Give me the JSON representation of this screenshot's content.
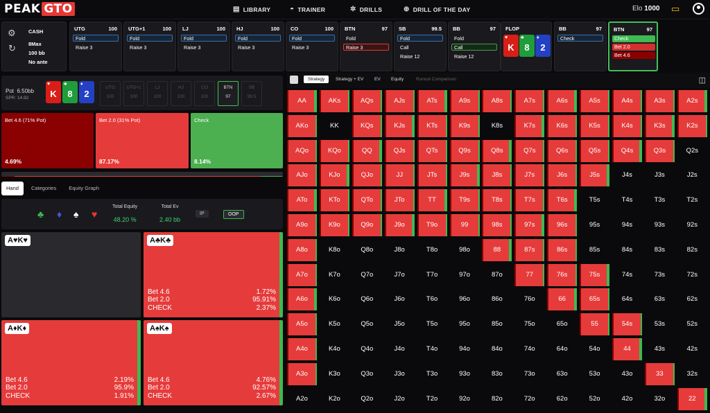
{
  "app": {
    "logo_a": "PEAK",
    "logo_b": "GTO",
    "nav": [
      {
        "icon": "▤",
        "label": "LIBRARY"
      },
      {
        "icon": "◓",
        "label": "TRAINER"
      },
      {
        "icon": "✲",
        "label": "DRILLS"
      },
      {
        "icon": "⊕",
        "label": "DRILL OF THE DAY"
      }
    ],
    "elo_label": "Elo",
    "elo_value": "1000"
  },
  "game": {
    "type": "CASH",
    "format": "8Max",
    "stack": "100 bb",
    "ante": "No ante"
  },
  "positions": [
    {
      "name": "UTG",
      "stack": "100",
      "actions": [
        {
          "label": "Fold",
          "style": "fold"
        },
        {
          "label": "Raise 3",
          "style": "plain"
        }
      ]
    },
    {
      "name": "UTG+1",
      "stack": "100",
      "actions": [
        {
          "label": "Fold",
          "style": "fold"
        },
        {
          "label": "Raise 3",
          "style": "plain"
        }
      ]
    },
    {
      "name": "LJ",
      "stack": "100",
      "actions": [
        {
          "label": "Fold",
          "style": "fold"
        },
        {
          "label": "Raise 3",
          "style": "plain"
        }
      ]
    },
    {
      "name": "HJ",
      "stack": "100",
      "actions": [
        {
          "label": "Fold",
          "style": "fold"
        },
        {
          "label": "Raise 3",
          "style": "plain"
        }
      ]
    },
    {
      "name": "CO",
      "stack": "100",
      "actions": [
        {
          "label": "Fold",
          "style": "fold"
        },
        {
          "label": "Raise 3",
          "style": "plain"
        }
      ]
    },
    {
      "name": "BTN",
      "stack": "97",
      "actions": [
        {
          "label": "Fold",
          "style": "plain"
        },
        {
          "label": "Raise 3",
          "style": "raiseSel"
        }
      ]
    },
    {
      "name": "SB",
      "stack": "99.5",
      "actions": [
        {
          "label": "Fold",
          "style": "fold"
        },
        {
          "label": "Call",
          "style": "plain"
        },
        {
          "label": "Raise 12",
          "style": "plain"
        }
      ]
    },
    {
      "name": "BB",
      "stack": "97",
      "actions": [
        {
          "label": "Fold",
          "style": "plain"
        },
        {
          "label": "Call",
          "style": "callSel"
        },
        {
          "label": "Raise 12",
          "style": "plain"
        }
      ]
    }
  ],
  "flop": {
    "label": "FLOP",
    "cards": [
      {
        "rank": "K",
        "suit": "♥",
        "color": "#d91e18"
      },
      {
        "rank": "8",
        "suit": "♣",
        "color": "#1f9d3a"
      },
      {
        "rank": "2",
        "suit": "♦",
        "color": "#2440c4"
      }
    ]
  },
  "bb_node": {
    "name": "BB",
    "stack": "97",
    "action": "Check"
  },
  "hero_node": {
    "name": "BTN",
    "stack": "97",
    "actions": [
      {
        "label": "Check",
        "style": "g"
      },
      {
        "label": "Bet 2.0",
        "style": "r"
      },
      {
        "label": "Bet 4.6",
        "style": "dr"
      }
    ]
  },
  "pot": {
    "label": "Pot",
    "value": "6.50bb",
    "spr": "SPR: 14.92"
  },
  "mini_positions": [
    {
      "n": "UTG",
      "s": "100"
    },
    {
      "n": "UTG+1",
      "s": "100"
    },
    {
      "n": "LJ",
      "s": "100"
    },
    {
      "n": "HJ",
      "s": "100"
    },
    {
      "n": "CO",
      "s": "100"
    },
    {
      "n": "BTN",
      "s": "97",
      "sel": true
    },
    {
      "n": "SB",
      "s": "99.5"
    }
  ],
  "strategy": [
    {
      "label": "Bet 4.6 (71% Pot)",
      "pct": "4.69%",
      "freq": 4.69,
      "color": "#8b0000"
    },
    {
      "label": "Bet 2.0 (31% Pot)",
      "pct": "87.17%",
      "freq": 87.17,
      "color": "#e63b3b"
    },
    {
      "label": "Check",
      "pct": "8.14%",
      "freq": 8.14,
      "color": "#4caf50"
    }
  ],
  "tabs": [
    "Hand",
    "Categories",
    "Equity Graph"
  ],
  "equity": {
    "total_equity_label": "Total Equity",
    "total_equity": "48.20 %",
    "total_ev_label": "Total Ev",
    "total_ev": "2.40 bb",
    "ip": "IP",
    "oop": "OOP"
  },
  "suits": [
    {
      "s": "♣",
      "c": "#3fb950"
    },
    {
      "s": "♦",
      "c": "#3b5bdb"
    },
    {
      "s": "♠",
      "c": "#ffffff"
    },
    {
      "s": "♥",
      "c": "#e53935"
    }
  ],
  "combos": [
    {
      "label": "A♥K♥",
      "lines": [],
      "empty": true
    },
    {
      "label": "A♣K♣",
      "lines": [
        [
          "Bet 4.6",
          "1.72%"
        ],
        [
          "Bet 2.0",
          "95.91%"
        ],
        [
          "CHECK",
          "2.37%"
        ]
      ]
    },
    {
      "label": "A♦K♦",
      "lines": [
        [
          "Bet 4.6",
          "2.19%"
        ],
        [
          "Bet 2.0",
          "95.9%"
        ],
        [
          "CHECK",
          "1.91%"
        ]
      ]
    },
    {
      "label": "A♠K♠",
      "lines": [
        [
          "Bet 4.6",
          "4.76%"
        ],
        [
          "Bet 2.0",
          "92.57%"
        ],
        [
          "CHECK",
          "2.67%"
        ]
      ]
    }
  ],
  "grid_tabs": [
    "Strategy",
    "Strategy + EV",
    "EV",
    "Equity",
    "Runout Comparison"
  ],
  "grid": {
    "ranks": [
      "A",
      "K",
      "Q",
      "J",
      "T",
      "9",
      "8",
      "7",
      "6",
      "5",
      "4",
      "3",
      "2"
    ],
    "in_range": [
      [
        1,
        1,
        1,
        1,
        1,
        1,
        1,
        1,
        1,
        1,
        1,
        1,
        1
      ],
      [
        1,
        0,
        1,
        1,
        1,
        1,
        0,
        1,
        1,
        1,
        1,
        1,
        1
      ],
      [
        1,
        1,
        1,
        1,
        1,
        1,
        1,
        1,
        1,
        1,
        1,
        1,
        0
      ],
      [
        1,
        1,
        1,
        1,
        1,
        1,
        1,
        1,
        1,
        1,
        0,
        0,
        0
      ],
      [
        1,
        1,
        1,
        1,
        1,
        1,
        1,
        1,
        1,
        0,
        0,
        0,
        0
      ],
      [
        1,
        1,
        1,
        1,
        1,
        1,
        1,
        1,
        1,
        0,
        0,
        0,
        0
      ],
      [
        1,
        0,
        0,
        0,
        0,
        0,
        1,
        1,
        1,
        0,
        0,
        0,
        0
      ],
      [
        1,
        0,
        0,
        0,
        0,
        0,
        0,
        1,
        1,
        1,
        0,
        0,
        0
      ],
      [
        1,
        0,
        0,
        0,
        0,
        0,
        0,
        0,
        1,
        1,
        0,
        0,
        0
      ],
      [
        1,
        0,
        0,
        0,
        0,
        0,
        0,
        0,
        0,
        1,
        1,
        0,
        0
      ],
      [
        1,
        0,
        0,
        0,
        0,
        0,
        0,
        0,
        0,
        0,
        1,
        0,
        0
      ],
      [
        1,
        0,
        0,
        0,
        0,
        0,
        0,
        0,
        0,
        0,
        0,
        1,
        0
      ],
      [
        0,
        0,
        0,
        0,
        0,
        0,
        0,
        0,
        0,
        0,
        0,
        0,
        1
      ]
    ]
  }
}
